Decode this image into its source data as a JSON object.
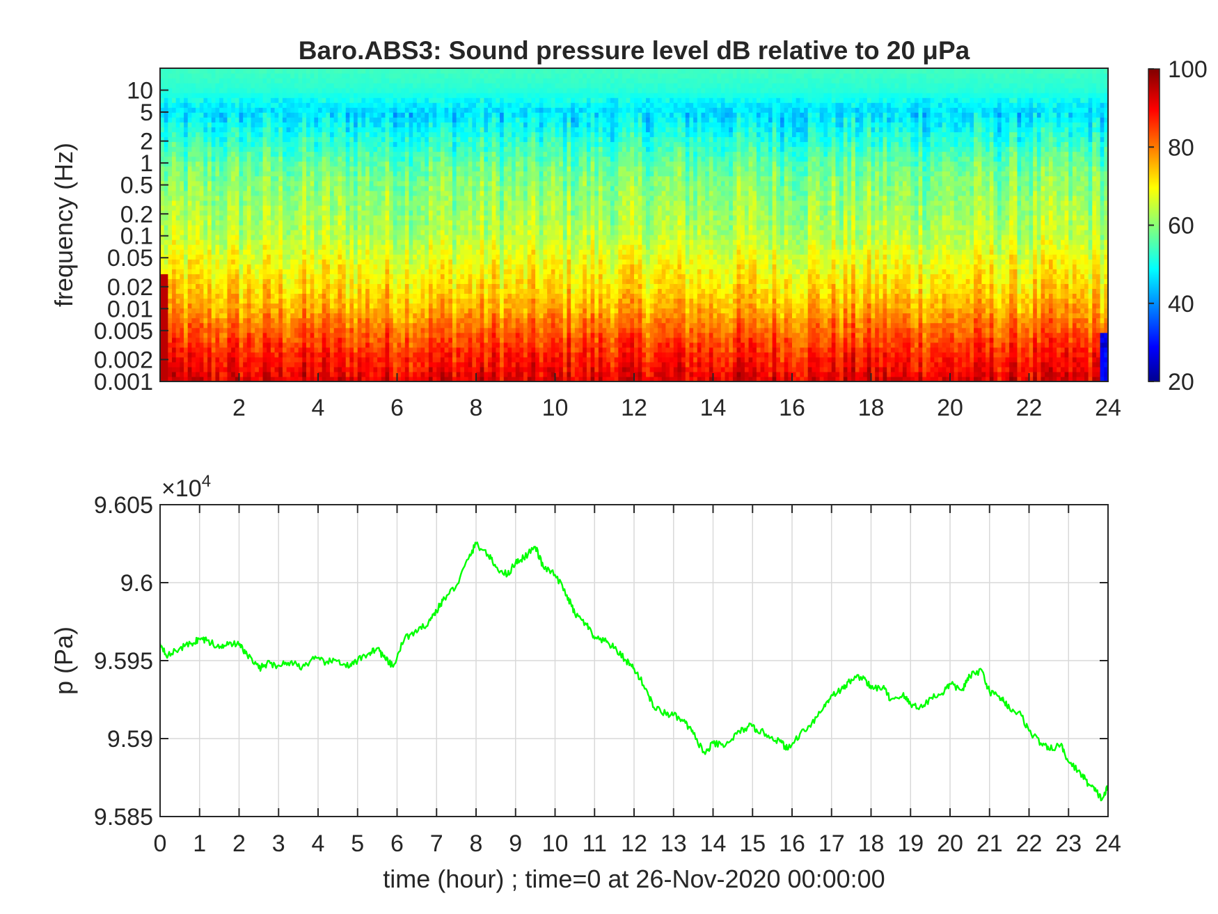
{
  "colors": {
    "line": "#00ff00",
    "axes": "#262626",
    "grid": "#d9d9d9",
    "background": "#ffffff"
  },
  "chart_data": [
    {
      "type": "heatmap",
      "title": "Baro.ABS3: Sound pressure level dB relative to 20 μPa",
      "xlabel": "",
      "ylabel": "frequency (Hz)",
      "x_range": [
        0,
        24
      ],
      "x_ticks": [
        "2",
        "4",
        "6",
        "8",
        "10",
        "12",
        "14",
        "16",
        "18",
        "20",
        "22",
        "24"
      ],
      "y_scale": "log",
      "y_range": [
        0.001,
        20
      ],
      "y_ticks": [
        "0.001",
        "0.002",
        "0.005",
        "0.01",
        "0.02",
        "0.05",
        "0.1",
        "0.2",
        "0.5",
        "1",
        "2",
        "5",
        "10"
      ],
      "colormap": "jet",
      "colorbar": {
        "range": [
          20,
          100
        ],
        "ticks": [
          "20",
          "40",
          "60",
          "80",
          "100"
        ]
      },
      "level_profile": {
        "frequency_hz": [
          0.001,
          0.002,
          0.005,
          0.01,
          0.02,
          0.05,
          0.1,
          0.2,
          0.5,
          1,
          2,
          5,
          10,
          20
        ],
        "approx_db": [
          92,
          88,
          82,
          76,
          72,
          68,
          64,
          62,
          60,
          57,
          52,
          46,
          52,
          54
        ]
      }
    },
    {
      "type": "line",
      "title": "",
      "xlabel": "time (hour) ; time=0 at 26-Nov-2020 00:00:00",
      "ylabel": "p (Pa)",
      "y_multiplier": "×10",
      "y_multiplier_exponent": "4",
      "x_range": [
        0,
        24
      ],
      "x_ticks": [
        "0",
        "1",
        "2",
        "3",
        "4",
        "5",
        "6",
        "7",
        "8",
        "9",
        "10",
        "11",
        "12",
        "13",
        "14",
        "15",
        "16",
        "17",
        "18",
        "19",
        "20",
        "21",
        "22",
        "23",
        "24"
      ],
      "ylim": [
        9.585,
        9.605
      ],
      "y_ticks": [
        "9.585",
        "9.59",
        "9.595",
        "9.6",
        "9.605"
      ],
      "grid": true,
      "series": [
        {
          "color": "#00ff00",
          "x": [
            0,
            0.2,
            0.5,
            0.8,
            1.0,
            1.2,
            1.5,
            1.7,
            2.0,
            2.2,
            2.5,
            2.7,
            3.0,
            3.3,
            3.6,
            3.9,
            4.2,
            4.5,
            4.8,
            5.0,
            5.3,
            5.5,
            5.7,
            5.9,
            6.2,
            6.5,
            6.8,
            7.0,
            7.2,
            7.5,
            7.8,
            8.0,
            8.3,
            8.5,
            8.8,
            9.0,
            9.2,
            9.5,
            9.7,
            10.0,
            10.3,
            10.5,
            10.8,
            11.0,
            11.3,
            11.5,
            11.8,
            12.0,
            12.3,
            12.5,
            12.8,
            13.0,
            13.3,
            13.5,
            13.8,
            14.0,
            14.3,
            14.6,
            14.9,
            15.1,
            15.4,
            15.7,
            15.9,
            16.2,
            16.5,
            16.8,
            17.0,
            17.3,
            17.5,
            17.8,
            18.0,
            18.3,
            18.5,
            18.8,
            19.0,
            19.3,
            19.5,
            19.8,
            20.0,
            20.3,
            20.5,
            20.8,
            21.0,
            21.3,
            21.5,
            21.8,
            22.0,
            22.3,
            22.5,
            22.8,
            23.0,
            23.3,
            23.5,
            23.7,
            23.85,
            24.0
          ],
          "y": [
            9.5961,
            9.5953,
            9.5958,
            9.5961,
            9.5964,
            9.5963,
            9.5958,
            9.5962,
            9.596,
            9.5954,
            9.5945,
            9.5948,
            9.5947,
            9.5949,
            9.5946,
            9.5951,
            9.5949,
            9.595,
            9.5946,
            9.595,
            9.5955,
            9.5958,
            9.5951,
            9.5946,
            9.5965,
            9.5968,
            9.5975,
            9.5982,
            9.599,
            9.5998,
            9.6015,
            9.6025,
            9.6018,
            9.601,
            9.6005,
            9.6013,
            9.6016,
            9.6023,
            9.601,
            9.6005,
            9.5992,
            9.598,
            9.5973,
            9.5964,
            9.5962,
            9.5958,
            9.595,
            9.5945,
            9.5932,
            9.592,
            9.5916,
            9.5915,
            9.591,
            9.5903,
            9.589,
            9.5897,
            9.5895,
            9.5903,
            9.5908,
            9.5906,
            9.5902,
            9.5898,
            9.5893,
            9.5903,
            9.591,
            9.592,
            9.5928,
            9.5932,
            9.5938,
            9.594,
            9.5932,
            9.5933,
            9.5925,
            9.5928,
            9.5922,
            9.592,
            9.5926,
            9.5929,
            9.5935,
            9.5931,
            9.594,
            9.5944,
            9.593,
            9.5926,
            9.592,
            9.5915,
            9.5905,
            9.5897,
            9.5893,
            9.5896,
            9.5885,
            9.5878,
            9.5871,
            9.5866,
            9.5861,
            9.5869
          ]
        }
      ]
    }
  ]
}
